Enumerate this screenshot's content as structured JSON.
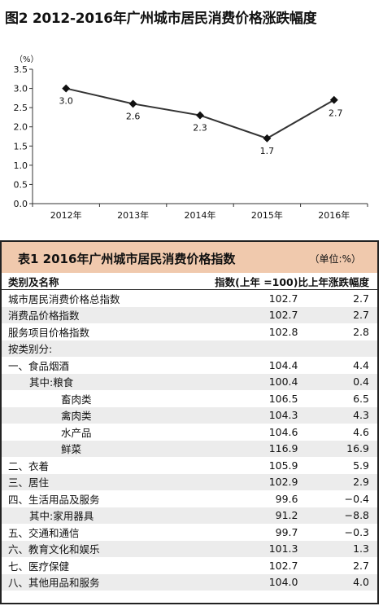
{
  "figure_title": "图2 2012-2016年广州城市居民消费价格涨跌幅度",
  "chart_data": {
    "type": "line",
    "y_unit": "（%）",
    "categories": [
      "2012年",
      "2013年",
      "2014年",
      "2015年",
      "2016年"
    ],
    "values": [
      3.0,
      2.6,
      2.3,
      1.7,
      2.7
    ],
    "data_labels": [
      "3.0",
      "2.6",
      "2.3",
      "1.7",
      "2.7"
    ],
    "ylim": [
      0.0,
      3.5
    ],
    "yticks": [
      "0.0",
      "0.5",
      "1.0",
      "1.5",
      "2.0",
      "2.5",
      "3.0",
      "3.5"
    ],
    "grid": false,
    "line_color": "#333333"
  },
  "table": {
    "title": "表1 2016年广州城市居民消费价格指数",
    "unit": "（单位:%）",
    "header_color": "#f0c9ad",
    "columns": [
      "类别及名称",
      "指数(上年 =100)",
      "比上年涨跌幅度"
    ],
    "rows": [
      {
        "name": "城市居民消费价格总指数",
        "index": "102.7",
        "change": "2.7",
        "indent": 0
      },
      {
        "name": "消费品价格指数",
        "index": "102.7",
        "change": "2.7",
        "indent": 0
      },
      {
        "name": "服务项目价格指数",
        "index": "102.8",
        "change": "2.8",
        "indent": 0
      },
      {
        "name": "按类别分:",
        "index": "",
        "change": "",
        "indent": 0
      },
      {
        "name": "一、食品烟酒",
        "index": "104.4",
        "change": "4.4",
        "indent": 0
      },
      {
        "name": "其中:粮食",
        "index": "100.4",
        "change": "0.4",
        "indent": 2
      },
      {
        "name": "畜肉类",
        "index": "106.5",
        "change": "6.5",
        "indent": 5
      },
      {
        "name": "禽肉类",
        "index": "104.3",
        "change": "4.3",
        "indent": 5
      },
      {
        "name": "水产品",
        "index": "104.6",
        "change": "4.6",
        "indent": 5
      },
      {
        "name": "鲜菜",
        "index": "116.9",
        "change": "16.9",
        "indent": 5
      },
      {
        "name": "二、衣着",
        "index": "105.9",
        "change": "5.9",
        "indent": 0
      },
      {
        "name": "三、居住",
        "index": "102.9",
        "change": "2.9",
        "indent": 0
      },
      {
        "name": "四、生活用品及服务",
        "index": "99.6",
        "change": "−0.4",
        "indent": 0
      },
      {
        "name": "其中:家用器具",
        "index": "91.2",
        "change": "−8.8",
        "indent": 2
      },
      {
        "name": "五、交通和通信",
        "index": "99.7",
        "change": "−0.3",
        "indent": 0
      },
      {
        "name": "六、教育文化和娱乐",
        "index": "101.3",
        "change": "1.3",
        "indent": 0
      },
      {
        "name": "七、医疗保健",
        "index": "102.7",
        "change": "2.7",
        "indent": 0
      },
      {
        "name": "八、其他用品和服务",
        "index": "104.0",
        "change": "4.0",
        "indent": 0
      }
    ]
  }
}
